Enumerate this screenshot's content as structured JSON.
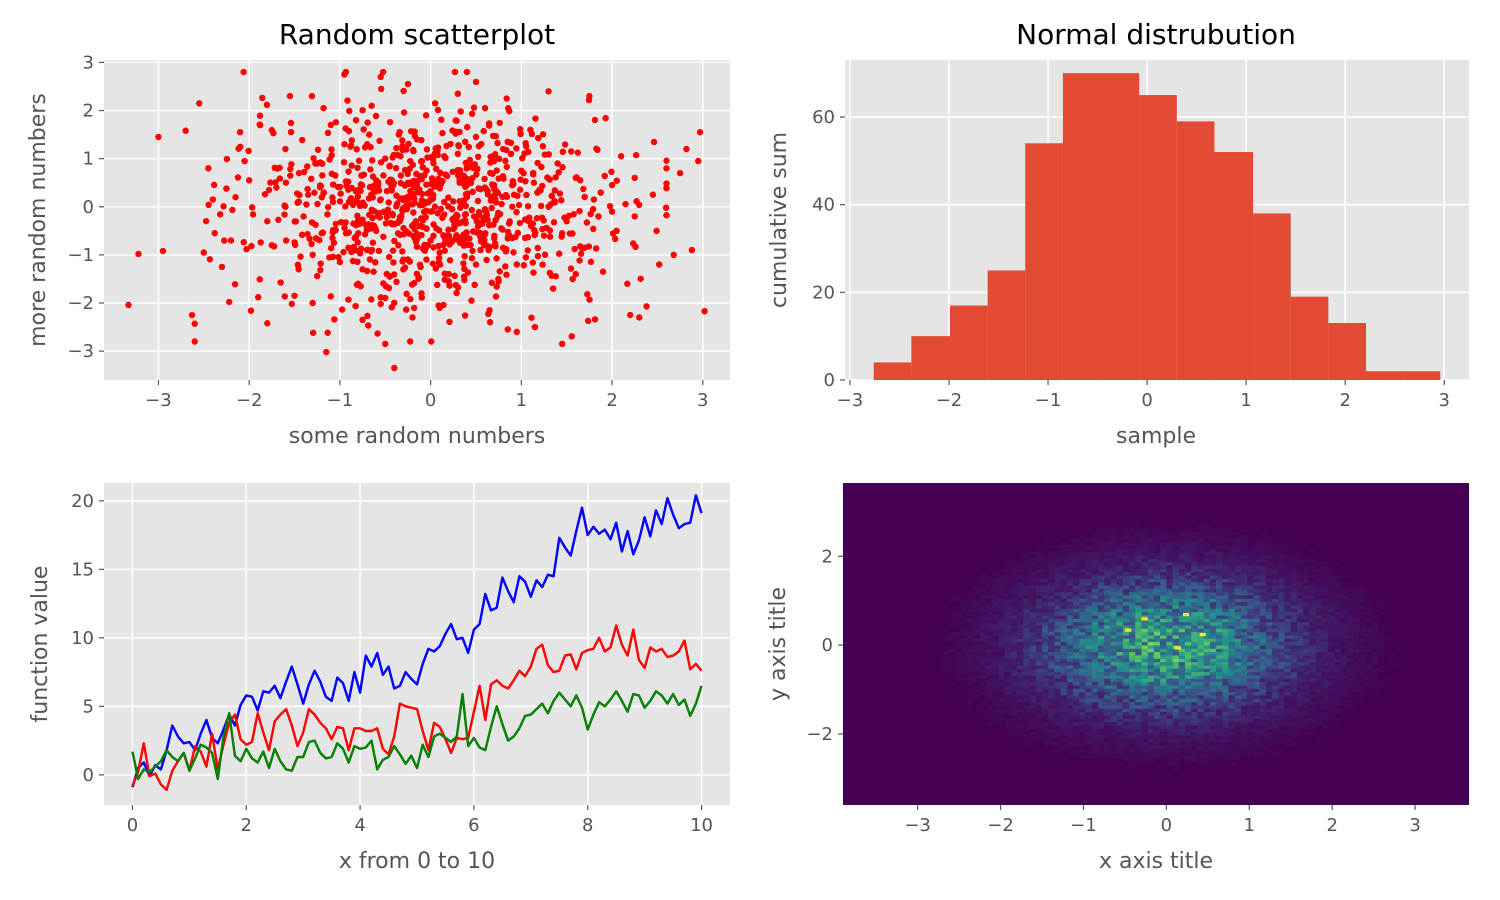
{
  "chart_data": [
    {
      "type": "scatter",
      "title": "Random scatterplot",
      "xlabel": "some random numbers",
      "ylabel": "more random numbers",
      "xlim": [
        -3.6,
        3.3
      ],
      "ylim": [
        -3.6,
        3.05
      ],
      "xticks": [
        -3,
        -2,
        -1,
        0,
        1,
        2,
        3
      ],
      "yticks": [
        -3,
        -2,
        -1,
        0,
        1,
        2,
        3
      ],
      "tick_labels_x": [
        "−3",
        "−2",
        "−1",
        "0",
        "1",
        "2",
        "3"
      ],
      "tick_labels_y": [
        "−3",
        "−2",
        "−1",
        "0",
        "1",
        "2",
        "3"
      ],
      "grid": true,
      "color": "#ff0000",
      "points": [
        [
          -3.33,
          -2.04
        ],
        [
          -3.22,
          -0.98
        ],
        [
          -3.0,
          1.45
        ],
        [
          -2.95,
          -0.92
        ],
        [
          -2.7,
          1.58
        ],
        [
          -2.63,
          -2.25
        ],
        [
          -2.55,
          2.15
        ],
        [
          -2.5,
          -0.95
        ],
        [
          -2.45,
          0.8
        ],
        [
          -2.4,
          0.15
        ],
        [
          -2.38,
          -0.55
        ],
        [
          -2.3,
          -1.25
        ],
        [
          -2.22,
          -1.98
        ],
        [
          -2.15,
          0.2
        ],
        [
          -2.1,
          1.55
        ],
        [
          -2.05,
          0.95
        ],
        [
          -2.0,
          0.55
        ],
        [
          -1.98,
          -2.16
        ],
        [
          -1.9,
          -1.88
        ],
        [
          -1.8,
          -2.42
        ],
        [
          -1.75,
          -0.8
        ],
        [
          -1.7,
          0.4
        ],
        [
          -1.6,
          1.2
        ],
        [
          -1.55,
          2.3
        ],
        [
          -1.5,
          -1.85
        ],
        [
          -1.4,
          -0.2
        ],
        [
          -1.3,
          -2.0
        ],
        [
          -1.25,
          0.9
        ],
        [
          -1.18,
          2.05
        ],
        [
          -1.15,
          -3.02
        ],
        [
          -1.1,
          1.7
        ],
        [
          -1.0,
          -1.15
        ],
        [
          -0.95,
          2.75
        ],
        [
          -0.9,
          0.1
        ],
        [
          -0.8,
          -1.6
        ],
        [
          -0.75,
          -2.35
        ],
        [
          -0.7,
          1.3
        ],
        [
          -0.65,
          2.1
        ],
        [
          -0.6,
          -0.5
        ],
        [
          -0.55,
          2.7
        ],
        [
          -0.5,
          -2.85
        ],
        [
          -0.45,
          0.85
        ],
        [
          -0.4,
          -3.35
        ],
        [
          -0.35,
          1.5
        ],
        [
          -0.3,
          -1.1
        ],
        [
          -0.25,
          2.55
        ],
        [
          -0.2,
          -2.3
        ],
        [
          -0.15,
          0.3
        ],
        [
          -0.1,
          -1.8
        ],
        [
          -0.05,
          1.9
        ],
        [
          0.0,
          -0.7
        ],
        [
          0.05,
          2.15
        ],
        [
          0.1,
          -2.1
        ],
        [
          0.15,
          1.05
        ],
        [
          0.2,
          -1.4
        ],
        [
          0.25,
          -0.25
        ],
        [
          0.3,
          2.35
        ],
        [
          0.35,
          0.65
        ],
        [
          0.4,
          2.8
        ],
        [
          0.45,
          -1.95
        ],
        [
          0.5,
          1.45
        ],
        [
          0.55,
          -0.9
        ],
        [
          0.6,
          2.05
        ],
        [
          0.65,
          -2.15
        ],
        [
          0.7,
          0.45
        ],
        [
          0.75,
          -1.55
        ],
        [
          0.8,
          1.2
        ],
        [
          0.85,
          -2.55
        ],
        [
          0.9,
          0.0
        ],
        [
          0.95,
          -2.6
        ],
        [
          1.0,
          0.75
        ],
        [
          1.05,
          -1.05
        ],
        [
          1.1,
          1.6
        ],
        [
          1.15,
          -2.5
        ],
        [
          1.2,
          0.35
        ],
        [
          1.25,
          -0.6
        ],
        [
          1.3,
          2.4
        ],
        [
          1.35,
          -1.7
        ],
        [
          1.4,
          0.9
        ],
        [
          1.45,
          -2.85
        ],
        [
          1.5,
          -0.3
        ],
        [
          1.55,
          1.15
        ],
        [
          1.6,
          -1.4
        ],
        [
          1.65,
          0.55
        ],
        [
          1.7,
          -0.85
        ],
        [
          1.75,
          2.3
        ],
        [
          1.8,
          0.15
        ],
        [
          1.9,
          -1.35
        ],
        [
          2.0,
          0.45
        ],
        [
          2.05,
          -0.5
        ],
        [
          2.1,
          1.05
        ],
        [
          2.2,
          -2.25
        ],
        [
          2.25,
          -0.2
        ],
        [
          2.3,
          -2.3
        ],
        [
          2.38,
          -2.07
        ],
        [
          2.45,
          0.25
        ],
        [
          2.52,
          -1.2
        ],
        [
          2.6,
          0.8
        ],
        [
          2.68,
          -1.0
        ],
        [
          2.75,
          0.7
        ],
        [
          2.82,
          1.2
        ],
        [
          2.88,
          -0.9
        ],
        [
          2.95,
          0.95
        ],
        [
          2.97,
          1.55
        ],
        [
          3.02,
          -2.17
        ],
        [
          -1.35,
          0.25
        ],
        [
          -1.2,
          -0.55
        ],
        [
          -1.05,
          0.65
        ],
        [
          -0.85,
          -0.35
        ],
        [
          -0.6,
          0.55
        ],
        [
          -0.42,
          -0.15
        ],
        [
          -0.28,
          0.45
        ],
        [
          -0.12,
          -0.4
        ],
        [
          0.02,
          0.2
        ],
        [
          0.18,
          -0.6
        ],
        [
          0.32,
          0.5
        ],
        [
          0.48,
          -0.2
        ],
        [
          0.62,
          0.35
        ],
        [
          0.78,
          -0.45
        ],
        [
          0.92,
          0.25
        ],
        [
          1.08,
          -0.3
        ],
        [
          -0.7,
          -0.9
        ],
        [
          -0.5,
          1.0
        ],
        [
          -0.3,
          -1.3
        ],
        [
          -0.1,
          0.95
        ],
        [
          0.1,
          -0.95
        ],
        [
          0.3,
          1.1
        ],
        [
          0.5,
          -1.2
        ],
        [
          0.7,
          0.95
        ],
        [
          -1.6,
          0.0
        ],
        [
          -1.45,
          0.7
        ],
        [
          -1.3,
          -1.0
        ],
        [
          1.3,
          0.0
        ],
        [
          1.45,
          -0.55
        ],
        [
          1.6,
          0.6
        ],
        [
          -0.95,
          1.3
        ],
        [
          -0.75,
          -1.3
        ],
        [
          0.85,
          1.35
        ],
        [
          0.95,
          -1.2
        ],
        [
          -1.8,
          -0.3
        ],
        [
          1.85,
          -0.2
        ],
        [
          -2.2,
          -0.7
        ],
        [
          2.25,
          0.6
        ],
        [
          -0.2,
          0.05
        ],
        [
          0.0,
          -0.1
        ],
        [
          0.15,
          0.1
        ],
        [
          -0.35,
          -0.3
        ],
        [
          0.4,
          0.2
        ],
        [
          -0.55,
          0.15
        ],
        [
          0.6,
          -0.05
        ],
        [
          -0.15,
          1.4
        ],
        [
          0.2,
          -1.55
        ],
        [
          -0.8,
          0.35
        ],
        [
          0.9,
          -0.65
        ]
      ]
    },
    {
      "type": "bar",
      "title": "Normal distrubution",
      "xlabel": "sample",
      "ylabel": "cumulative sum",
      "xlim": [
        -3.05,
        3.25
      ],
      "ylim": [
        0,
        73
      ],
      "xticks": [
        -3,
        -2,
        -1,
        0,
        1,
        2,
        3
      ],
      "yticks": [
        0,
        20,
        40,
        60
      ],
      "tick_labels_x": [
        "−3",
        "−2",
        "−1",
        "0",
        "1",
        "2",
        "3"
      ],
      "tick_labels_y": [
        "0",
        "20",
        "40",
        "60"
      ],
      "grid": true,
      "color": "#e24a33",
      "bin_edges": [
        -2.76,
        -2.38,
        -1.99,
        -1.61,
        -1.23,
        -0.85,
        -0.46,
        -0.08,
        0.3,
        0.68,
        1.07,
        1.45,
        1.83,
        2.21,
        2.6,
        2.96
      ],
      "values": [
        4,
        10,
        17,
        25,
        54,
        70,
        70,
        65,
        59,
        52,
        38,
        19,
        13,
        2,
        2
      ]
    },
    {
      "type": "line",
      "xlabel": "x from 0 to 10",
      "ylabel": "function value",
      "xlim": [
        -0.5,
        10.5
      ],
      "ylim": [
        -2.2,
        21.3
      ],
      "xticks": [
        0,
        2,
        4,
        6,
        8,
        10
      ],
      "yticks": [
        0,
        5,
        10,
        15,
        20
      ],
      "tick_labels_x": [
        "0",
        "2",
        "4",
        "6",
        "8",
        "10"
      ],
      "tick_labels_y": [
        "0",
        "5",
        "10",
        "15",
        "20"
      ],
      "grid": true,
      "x": [
        0.0,
        0.1,
        0.2,
        0.3,
        0.4,
        0.5,
        0.6,
        0.7,
        0.8,
        0.9,
        1.0,
        1.1,
        1.2,
        1.3,
        1.4,
        1.5,
        1.6,
        1.7,
        1.8,
        1.9,
        2.0,
        2.1,
        2.2,
        2.3,
        2.4,
        2.5,
        2.6,
        2.7,
        2.8,
        2.9,
        3.0,
        3.1,
        3.2,
        3.3,
        3.4,
        3.5,
        3.6,
        3.7,
        3.8,
        3.9,
        4.0,
        4.1,
        4.2,
        4.3,
        4.4,
        4.5,
        4.6,
        4.7,
        4.8,
        4.9,
        5.0,
        5.1,
        5.2,
        5.3,
        5.4,
        5.5,
        5.6,
        5.7,
        5.8,
        5.9,
        6.0,
        6.1,
        6.2,
        6.3,
        6.4,
        6.5,
        6.6,
        6.7,
        6.8,
        6.9,
        7.0,
        7.1,
        7.2,
        7.3,
        7.4,
        7.5,
        7.6,
        7.7,
        7.8,
        7.9,
        8.0,
        8.1,
        8.2,
        8.3,
        8.4,
        8.5,
        8.6,
        8.7,
        8.8,
        8.9,
        9.0,
        9.1,
        9.2,
        9.3,
        9.4,
        9.5,
        9.6,
        9.7,
        9.8,
        9.9,
        10.0
      ],
      "series": [
        {
          "color": "#0000ff",
          "values": [
            -0.9,
            0.5,
            0.9,
            -0.1,
            0.7,
            0.4,
            1.8,
            3.6,
            2.8,
            2.3,
            2.4,
            1.8,
            3.0,
            4.0,
            2.7,
            2.3,
            3.3,
            4.4,
            3.6,
            5.1,
            5.8,
            5.7,
            4.7,
            6.1,
            6.0,
            6.5,
            5.6,
            6.8,
            7.9,
            6.6,
            5.2,
            6.6,
            7.6,
            6.8,
            5.7,
            5.4,
            7.1,
            6.7,
            5.4,
            7.5,
            6.0,
            8.7,
            7.9,
            8.9,
            7.3,
            7.9,
            6.3,
            6.5,
            7.5,
            7.0,
            6.6,
            8.1,
            9.2,
            9.0,
            9.4,
            10.3,
            11.0,
            9.9,
            10.0,
            8.9,
            10.6,
            11.0,
            13.2,
            12.0,
            12.2,
            14.4,
            13.4,
            12.6,
            14.5,
            14.1,
            13.0,
            14.2,
            13.7,
            14.6,
            14.5,
            17.3,
            16.6,
            16.0,
            17.8,
            19.5,
            17.5,
            18.1,
            17.6,
            17.9,
            17.2,
            18.4,
            16.3,
            17.8,
            16.1,
            17.1,
            18.8,
            17.4,
            19.3,
            18.3,
            20.2,
            19.0,
            18.0,
            18.3,
            18.4,
            20.4,
            19.1
          ]
        },
        {
          "color": "#ff0000",
          "values": [
            -0.8,
            0.2,
            2.3,
            -0.1,
            0.1,
            -0.7,
            -1.1,
            0.3,
            1.0,
            1.6,
            0.3,
            2.1,
            1.7,
            0.6,
            3.0,
            0.4,
            2.2,
            3.8,
            4.4,
            2.6,
            2.2,
            2.4,
            4.5,
            3.1,
            1.8,
            3.9,
            4.4,
            4.8,
            3.6,
            2.1,
            3.1,
            4.8,
            4.4,
            3.8,
            3.4,
            2.6,
            3.5,
            3.4,
            1.8,
            3.4,
            3.4,
            3.2,
            3.2,
            3.4,
            1.9,
            1.5,
            2.8,
            5.2,
            5.0,
            4.9,
            4.8,
            3.2,
            1.8,
            3.8,
            3.5,
            2.6,
            1.6,
            2.7,
            2.6,
            2.7,
            4.6,
            6.5,
            4.0,
            6.6,
            6.9,
            6.5,
            6.3,
            6.9,
            7.6,
            7.2,
            7.9,
            9.2,
            9.5,
            8.0,
            7.5,
            7.6,
            8.7,
            8.8,
            7.7,
            8.9,
            9.1,
            9.2,
            10.0,
            9.0,
            9.3,
            10.9,
            9.5,
            8.7,
            10.6,
            8.4,
            7.8,
            9.3,
            9.0,
            9.2,
            8.6,
            8.7,
            9.0,
            9.8,
            7.7,
            8.1,
            7.6
          ]
        },
        {
          "color": "#008000",
          "values": [
            1.7,
            -0.3,
            0.4,
            0.2,
            0.6,
            1.0,
            1.8,
            1.3,
            1.0,
            1.6,
            0.3,
            1.2,
            2.2,
            2.0,
            1.6,
            -0.3,
            2.8,
            4.5,
            1.4,
            1.0,
            1.9,
            1.2,
            0.9,
            1.7,
            0.5,
            1.9,
            1.0,
            0.4,
            0.3,
            1.3,
            1.3,
            2.4,
            2.5,
            1.6,
            1.2,
            1.3,
            2.3,
            1.9,
            0.9,
            2.1,
            1.9,
            2.0,
            2.5,
            0.4,
            1.1,
            1.3,
            2.1,
            1.5,
            0.8,
            1.4,
            0.5,
            2.2,
            1.3,
            2.8,
            3.0,
            2.7,
            2.4,
            2.8,
            5.9,
            2.1,
            2.7,
            2.0,
            1.8,
            3.5,
            5.0,
            3.7,
            2.5,
            2.8,
            3.4,
            4.3,
            4.4,
            4.8,
            5.2,
            4.5,
            5.4,
            6.0,
            5.5,
            5.0,
            5.8,
            4.9,
            3.3,
            4.4,
            5.3,
            5.0,
            5.5,
            6.1,
            5.4,
            4.6,
            5.9,
            5.8,
            4.9,
            5.4,
            6.1,
            5.8,
            5.2,
            5.9,
            5.1,
            5.5,
            4.3,
            5.2,
            6.5
          ]
        }
      ]
    },
    {
      "type": "heatmap",
      "xlabel": "x axis title",
      "ylabel": "y axis title",
      "xlim": [
        -3.9,
        3.65
      ],
      "ylim": [
        -3.6,
        3.65
      ],
      "xticks": [
        -3,
        -2,
        -1,
        0,
        1,
        2,
        3
      ],
      "yticks": [
        -2,
        0,
        2
      ],
      "tick_labels_x": [
        "−3",
        "−2",
        "−1",
        "0",
        "1",
        "2",
        "3"
      ],
      "tick_labels_y": [
        "−2",
        "0",
        "2"
      ],
      "grid": false,
      "colormap": [
        "#440154",
        "#3b528b",
        "#21918c",
        "#5ec962",
        "#fde725"
      ],
      "center": [
        0.0,
        0.0
      ],
      "spread": [
        1.0,
        1.0
      ],
      "peak_cells": [
        [
          0.2,
          0.65
        ],
        [
          -0.3,
          0.55
        ],
        [
          0.1,
          -0.1
        ],
        [
          -0.5,
          0.3
        ],
        [
          0.4,
          0.2
        ]
      ]
    }
  ]
}
